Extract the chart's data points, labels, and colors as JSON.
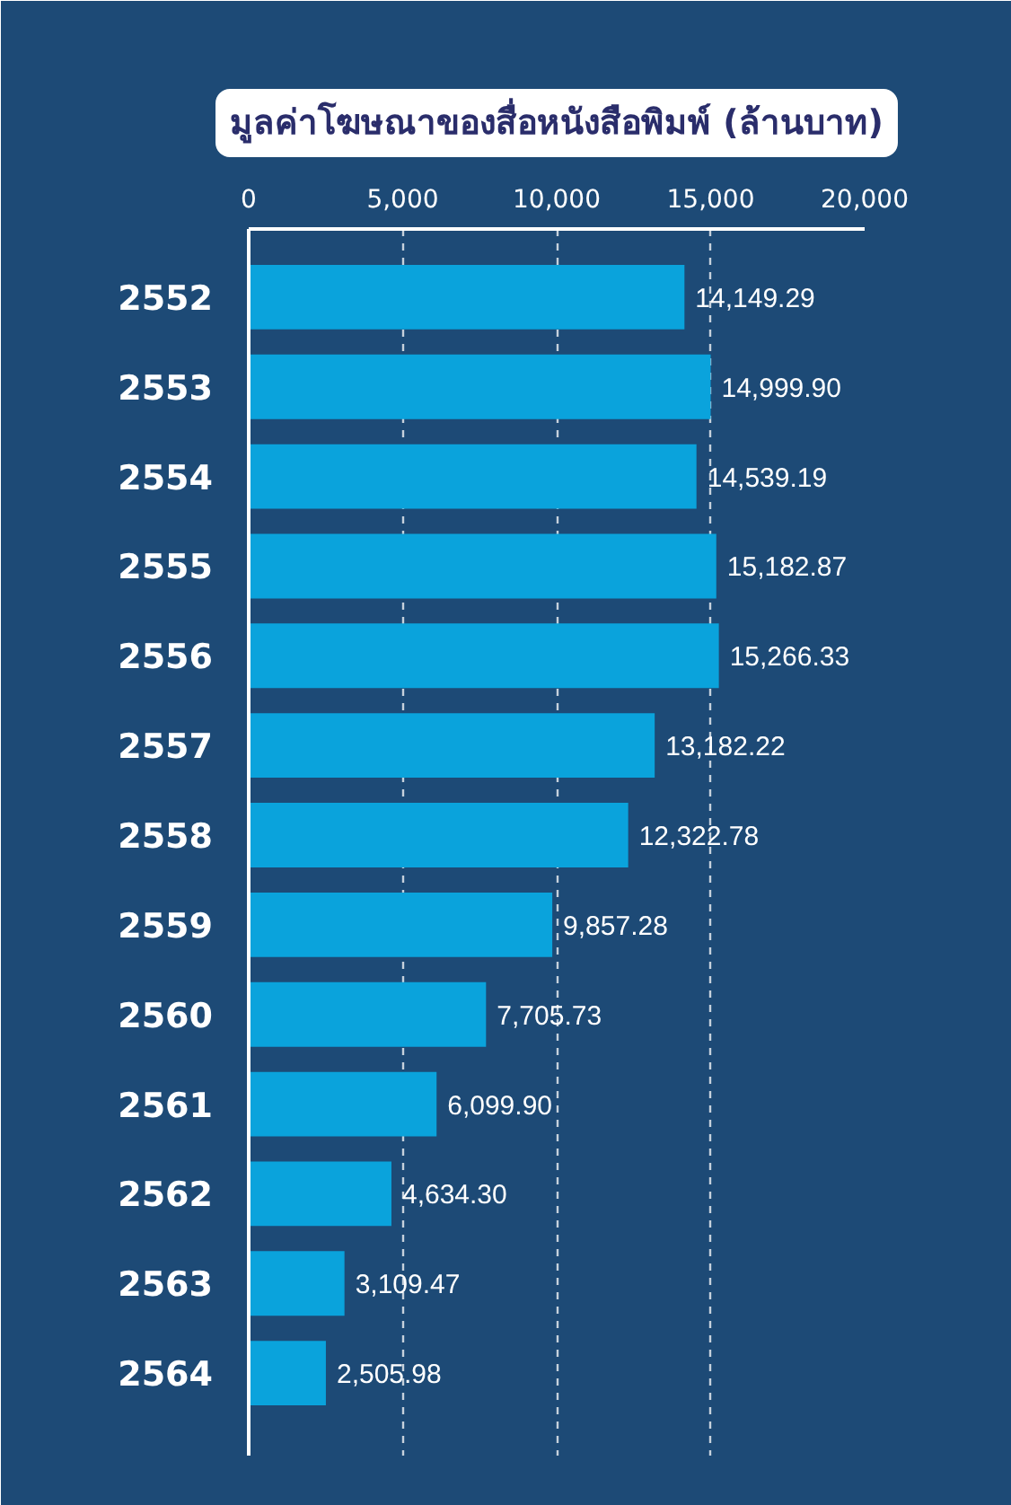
{
  "chart_data": {
    "type": "bar",
    "orientation": "horizontal",
    "title": "มูลค่าโฆษณาของสื่อหนังสือพิมพ์ (ล้านบาท)",
    "categories": [
      "2552",
      "2553",
      "2554",
      "2555",
      "2556",
      "2557",
      "2558",
      "2559",
      "2560",
      "2561",
      "2562",
      "2563",
      "2564"
    ],
    "values": [
      14149.29,
      14999.9,
      14539.19,
      15182.87,
      15266.33,
      13182.22,
      12322.78,
      9857.28,
      7705.73,
      6099.9,
      4634.3,
      3109.47,
      2505.98
    ],
    "value_labels": [
      "14,149.29",
      "14,999.90",
      "14,539.19",
      "15,182.87",
      "15,266.33",
      "13,182.22",
      "12,322.78",
      "9,857.28",
      "7,705.73",
      "6,099.90",
      "4,634.30",
      "3,109.47",
      "2,505.98"
    ],
    "color": "#0aa3dc",
    "xlim": [
      0,
      20000
    ],
    "xticks": [
      0,
      {
        "value": 5000,
        "label": "5,000"
      },
      {
        "value": 10000,
        "label": "10,000"
      },
      {
        "value": 15000,
        "label": "15,000"
      },
      {
        "value": 20000,
        "label": "20,000"
      }
    ],
    "grid": "x"
  }
}
